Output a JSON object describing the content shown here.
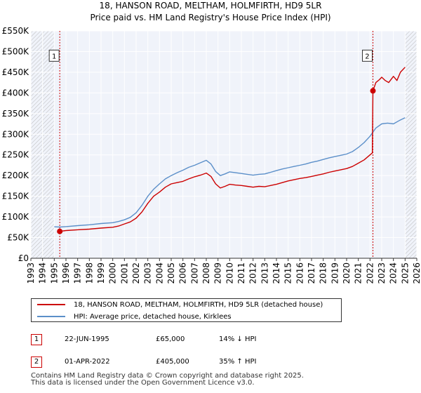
{
  "chart_data": {
    "type": "line",
    "title": "18, HANSON ROAD, MELTHAM, HOLMFIRTH, HD9 5LR",
    "subtitle": "Price paid vs. HM Land Registry's House Price Index (HPI)",
    "xlabel": "",
    "ylabel": "",
    "xlim": [
      1993,
      2026
    ],
    "ylim": [
      0,
      550000
    ],
    "x_ticks": [
      "1993",
      "1994",
      "1995",
      "1996",
      "1997",
      "1998",
      "1999",
      "2000",
      "2001",
      "2002",
      "2003",
      "2004",
      "2005",
      "2006",
      "2007",
      "2008",
      "2009",
      "2010",
      "2011",
      "2012",
      "2013",
      "2014",
      "2015",
      "2016",
      "2017",
      "2018",
      "2019",
      "2020",
      "2021",
      "2022",
      "2023",
      "2024",
      "2025",
      "2026"
    ],
    "y_ticks": [
      {
        "value": 0,
        "label": "£0"
      },
      {
        "value": 50000,
        "label": "£50K"
      },
      {
        "value": 100000,
        "label": "£100K"
      },
      {
        "value": 150000,
        "label": "£150K"
      },
      {
        "value": 200000,
        "label": "£200K"
      },
      {
        "value": 250000,
        "label": "£250K"
      },
      {
        "value": 300000,
        "label": "£300K"
      },
      {
        "value": 350000,
        "label": "£350K"
      },
      {
        "value": 400000,
        "label": "£400K"
      },
      {
        "value": 450000,
        "label": "£450K"
      },
      {
        "value": 500000,
        "label": "£500K"
      },
      {
        "value": 550000,
        "label": "£550K"
      }
    ],
    "grid": true,
    "hatch_regions": [
      [
        1993,
        1995.0
      ],
      [
        2025.0,
        2026
      ]
    ],
    "series": [
      {
        "name": "18, HANSON ROAD, MELTHAM, HOLMFIRTH, HD9 5LR (detached house)",
        "color": "#cc0000",
        "x": [
          1995.47,
          1996,
          1997,
          1998,
          1999,
          2000,
          2000.5,
          2001,
          2001.5,
          2002,
          2002.5,
          2003,
          2003.5,
          2004,
          2004.5,
          2005,
          2005.5,
          2006,
          2006.5,
          2007,
          2007.5,
          2008,
          2008.4,
          2008.8,
          2009.2,
          2009.6,
          2010,
          2010.5,
          2011,
          2011.5,
          2012,
          2012.5,
          2013,
          2013.5,
          2014,
          2014.5,
          2015,
          2015.5,
          2016,
          2016.5,
          2017,
          2017.5,
          2018,
          2018.5,
          2019,
          2019.5,
          2020,
          2020.5,
          2021,
          2021.5,
          2022.2,
          2022.249,
          2022.5,
          2022.8,
          2023,
          2023.3,
          2023.6,
          2024,
          2024.3,
          2024.6,
          2025
        ],
        "values": [
          65000,
          67000,
          69000,
          70500,
          73000,
          75000,
          78000,
          83000,
          88000,
          97000,
          112000,
          133000,
          150000,
          160000,
          172000,
          180000,
          183000,
          186000,
          192000,
          197000,
          201000,
          206000,
          198000,
          180000,
          170000,
          174000,
          179000,
          177000,
          176000,
          174000,
          172000,
          174000,
          173000,
          176000,
          179000,
          183000,
          187000,
          190000,
          193000,
          195000,
          198000,
          201000,
          204000,
          208000,
          211000,
          214000,
          217000,
          222000,
          230000,
          238000,
          255000,
          405000,
          425000,
          432000,
          438000,
          430000,
          425000,
          440000,
          430000,
          450000,
          462000
        ],
        "points": [
          [
            1995.47,
            65000
          ],
          [
            2022.249,
            405000
          ]
        ]
      },
      {
        "name": "HPI: Average price, detached house, Kirklees",
        "color": "#5b8fc9",
        "x": [
          1995.0,
          1995.5,
          1996,
          1997,
          1998,
          1999,
          2000,
          2000.5,
          2001,
          2001.5,
          2002,
          2002.5,
          2003,
          2003.5,
          2004,
          2004.5,
          2005,
          2005.5,
          2006,
          2006.5,
          2007,
          2007.5,
          2008,
          2008.4,
          2008.8,
          2009.2,
          2009.6,
          2010,
          2010.5,
          2011,
          2011.5,
          2012,
          2012.5,
          2013,
          2013.5,
          2014,
          2014.5,
          2015,
          2015.5,
          2016,
          2016.5,
          2017,
          2017.5,
          2018,
          2018.5,
          2019,
          2019.5,
          2020,
          2020.5,
          2021,
          2021.5,
          2022,
          2022.5,
          2023,
          2023.5,
          2024,
          2024.5,
          2025
        ],
        "values": [
          76000,
          75500,
          76500,
          79000,
          81000,
          84000,
          86000,
          89000,
          93000,
          99000,
          110000,
          128000,
          150000,
          167000,
          180000,
          192000,
          200000,
          207000,
          213000,
          220000,
          225000,
          231000,
          237000,
          228000,
          210000,
          200000,
          204000,
          209000,
          207000,
          205000,
          203000,
          201000,
          203000,
          204000,
          208000,
          212000,
          216000,
          219000,
          222000,
          225000,
          228000,
          232000,
          235000,
          239000,
          243000,
          246000,
          249000,
          252000,
          258000,
          268000,
          280000,
          295000,
          315000,
          325000,
          327000,
          325000,
          333000,
          340000
        ]
      }
    ],
    "annotations": [
      {
        "label": "1",
        "x": 1995.47,
        "y_label": 490000
      },
      {
        "label": "2",
        "x": 2022.249,
        "y_label": 490000
      }
    ]
  },
  "legend": {
    "items": [
      {
        "label": "18, HANSON ROAD, MELTHAM, HOLMFIRTH, HD9 5LR (detached house)",
        "color": "#cc0000"
      },
      {
        "label": "HPI: Average price, detached house, Kirklees",
        "color": "#5b8fc9"
      }
    ]
  },
  "transactions": [
    {
      "num": "1",
      "date": "22-JUN-1995",
      "price": "£65,000",
      "hpi": "14% ↓ HPI"
    },
    {
      "num": "2",
      "date": "01-APR-2022",
      "price": "£405,000",
      "hpi": "35% ↑ HPI"
    }
  ],
  "footer": {
    "line1": "Contains HM Land Registry data © Crown copyright and database right 2025.",
    "line2": "This data is licensed under the Open Government Licence v3.0."
  }
}
